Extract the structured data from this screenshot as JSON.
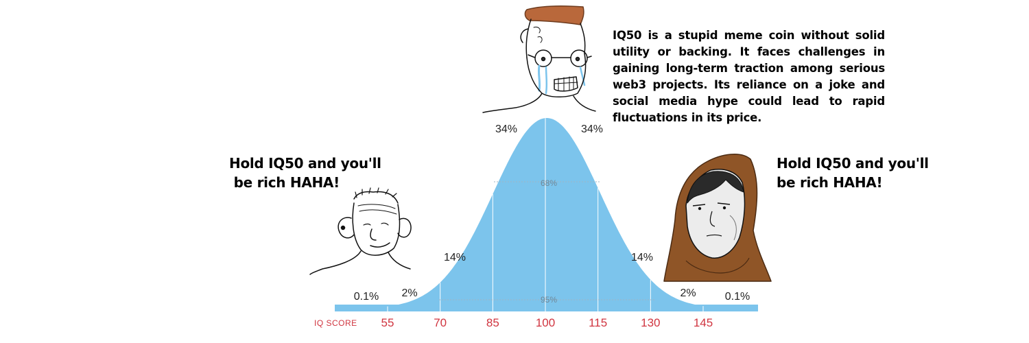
{
  "captions": {
    "top": "IQ50 is a stupid meme coin without solid utility or backing. It faces challenges in gaining long-term traction among serious web3 projects. Its reliance on a joke and social media hype could lead to rapid fluctuations in its price.",
    "left": "Hold IQ50 and you'll\n be rich HAHA!",
    "right": "Hold IQ50 and you'll\nbe rich HAHA!"
  },
  "chart": {
    "axis_label": "IQ SCORE",
    "ticks": [
      55,
      70,
      85,
      100,
      115,
      130,
      145
    ],
    "band_percentages": {
      "left_tail": "0.1%",
      "left_2": "2%",
      "left_14": "14%",
      "left_34": "34%",
      "right_34": "34%",
      "right_14": "14%",
      "right_2": "2%",
      "right_tail": "0.1%"
    },
    "inner_label_68": "68%",
    "inner_label_95": "95%",
    "colors": {
      "curve_fill": "#7cc4ec",
      "divider": "#ffffff",
      "tick_label": "#d0343f",
      "axis_label": "#d0343f",
      "inner_label": "#6f8797",
      "percent_label": "#222222"
    }
  },
  "characters": {
    "top": "crying-nerd-wojak-icon",
    "left": "simpleton-wojak-icon",
    "right": "hooded-monk-wojak-icon"
  }
}
